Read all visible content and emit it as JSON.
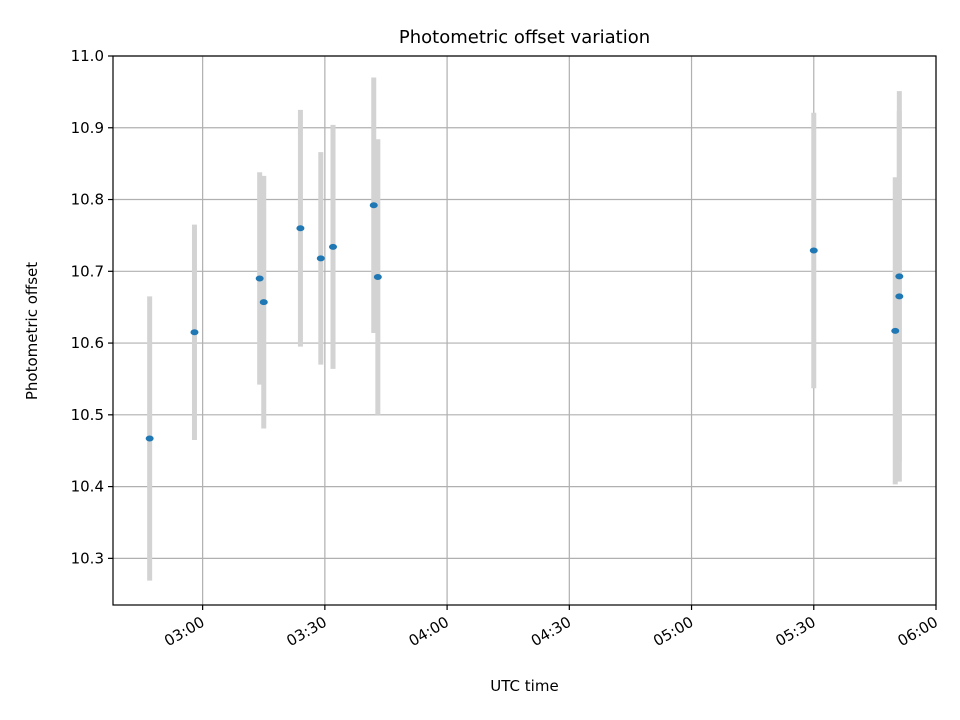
{
  "chart_data": {
    "type": "scatter",
    "title": "Photometric offset variation",
    "xlabel": "UTC time",
    "ylabel": "Photometric offset",
    "xlim": [
      "02:38",
      "06:00"
    ],
    "ylim": [
      10.235,
      11.0
    ],
    "x_ticks": [
      "03:00",
      "03:30",
      "04:00",
      "04:30",
      "05:00",
      "05:30",
      "06:00"
    ],
    "y_ticks": [
      10.3,
      10.4,
      10.5,
      10.6,
      10.7,
      10.8,
      10.9,
      11.0
    ],
    "y_tick_labels": [
      "10.3",
      "10.4",
      "10.5",
      "10.6",
      "10.7",
      "10.8",
      "10.9",
      "11.0"
    ],
    "grid": true,
    "marker_color": "#1f77b4",
    "errorbar_color": "#d3d3d3",
    "series": [
      {
        "points": [
          {
            "time": "02:47",
            "y": 10.467,
            "err": 0.198
          },
          {
            "time": "02:58",
            "y": 10.615,
            "err": 0.15
          },
          {
            "time": "03:14",
            "y": 10.69,
            "err": 0.148
          },
          {
            "time": "03:15",
            "y": 10.657,
            "err": 0.176
          },
          {
            "time": "03:24",
            "y": 10.76,
            "err": 0.165
          },
          {
            "time": "03:29",
            "y": 10.718,
            "err": 0.148
          },
          {
            "time": "03:32",
            "y": 10.734,
            "err": 0.17
          },
          {
            "time": "03:42",
            "y": 10.792,
            "err": 0.178
          },
          {
            "time": "03:43",
            "y": 10.692,
            "err": 0.192
          },
          {
            "time": "05:30",
            "y": 10.729,
            "err": 0.192
          },
          {
            "time": "05:50",
            "y": 10.617,
            "err": 0.214
          },
          {
            "time": "05:51",
            "y": 10.665,
            "err": 0.258
          },
          {
            "time": "05:51",
            "y": 10.693,
            "err": 0.258
          }
        ]
      }
    ]
  }
}
